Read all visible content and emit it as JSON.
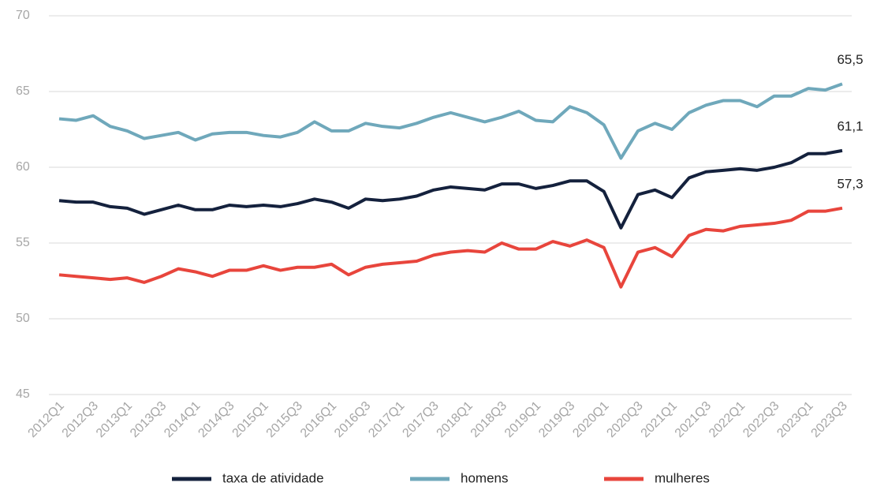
{
  "chart_data": {
    "type": "line",
    "categories": [
      "2012Q1",
      null,
      "2012Q3",
      null,
      "2013Q1",
      null,
      "2013Q3",
      null,
      "2014Q1",
      null,
      "2014Q3",
      null,
      "2015Q1",
      null,
      "2015Q3",
      null,
      "2016Q1",
      null,
      "2016Q3",
      null,
      "2017Q1",
      null,
      "2017Q3",
      null,
      "2018Q1",
      null,
      "2018Q3",
      null,
      "2019Q1",
      null,
      "2019Q3",
      null,
      "2020Q1",
      null,
      "2020Q3",
      null,
      "2021Q1",
      null,
      "2021Q3",
      null,
      "2022Q1",
      null,
      "2022Q3",
      null,
      "2023Q1",
      null,
      "2023Q3"
    ],
    "series": [
      {
        "name": "taxa de atividade",
        "color": "#14213d",
        "values": [
          57.8,
          57.7,
          57.7,
          57.4,
          57.3,
          56.9,
          57.2,
          57.5,
          57.2,
          57.2,
          57.5,
          57.4,
          57.5,
          57.4,
          57.6,
          57.9,
          57.7,
          57.3,
          57.9,
          57.8,
          57.9,
          58.1,
          58.5,
          58.7,
          58.6,
          58.5,
          58.9,
          58.9,
          58.6,
          58.8,
          59.1,
          59.1,
          58.4,
          56.0,
          58.2,
          58.5,
          58.0,
          59.3,
          59.7,
          59.8,
          59.9,
          59.8,
          60.0,
          60.3,
          60.9,
          60.9,
          61.1
        ],
        "value_labels": [
          null,
          null,
          null,
          null,
          null,
          null,
          null,
          null,
          null,
          null,
          null,
          null,
          null,
          null,
          null,
          null,
          null,
          null,
          null,
          null,
          null,
          null,
          null,
          null,
          null,
          null,
          null,
          null,
          null,
          null,
          null,
          null,
          null,
          null,
          null,
          null,
          null,
          null,
          null,
          null,
          null,
          null,
          null,
          null,
          null,
          null,
          "61,1"
        ]
      },
      {
        "name": "homens",
        "color": "#6fa8bb",
        "values": [
          63.2,
          63.1,
          63.4,
          62.7,
          62.4,
          61.9,
          62.1,
          62.3,
          61.8,
          62.2,
          62.3,
          62.3,
          62.1,
          62.0,
          62.3,
          63.0,
          62.4,
          62.4,
          62.9,
          62.7,
          62.6,
          62.9,
          63.3,
          63.6,
          63.3,
          63.0,
          63.3,
          63.7,
          63.1,
          63.0,
          64.0,
          63.6,
          62.8,
          60.6,
          62.4,
          62.9,
          62.5,
          63.6,
          64.1,
          64.4,
          64.4,
          64.0,
          64.7,
          64.7,
          65.2,
          65.1,
          65.5
        ],
        "value_labels": [
          null,
          null,
          null,
          null,
          null,
          null,
          null,
          null,
          null,
          null,
          null,
          null,
          null,
          null,
          null,
          null,
          null,
          null,
          null,
          null,
          null,
          null,
          null,
          null,
          null,
          null,
          null,
          null,
          null,
          null,
          null,
          null,
          null,
          null,
          null,
          null,
          null,
          null,
          null,
          null,
          null,
          null,
          null,
          null,
          null,
          null,
          "65,5"
        ]
      },
      {
        "name": "mulheres",
        "color": "#e8453c",
        "values": [
          52.9,
          52.8,
          52.7,
          52.6,
          52.7,
          52.4,
          52.8,
          53.3,
          53.1,
          52.8,
          53.2,
          53.2,
          53.5,
          53.2,
          53.4,
          53.4,
          53.6,
          52.9,
          53.4,
          53.6,
          53.7,
          53.8,
          54.2,
          54.4,
          54.5,
          54.4,
          55.0,
          54.6,
          54.6,
          55.1,
          54.8,
          55.2,
          54.7,
          52.1,
          54.4,
          54.7,
          54.1,
          55.5,
          55.9,
          55.8,
          56.1,
          56.2,
          56.3,
          56.5,
          57.1,
          57.1,
          57.3
        ],
        "value_labels": [
          null,
          null,
          null,
          null,
          null,
          null,
          null,
          null,
          null,
          null,
          null,
          null,
          null,
          null,
          null,
          null,
          null,
          null,
          null,
          null,
          null,
          null,
          null,
          null,
          null,
          null,
          null,
          null,
          null,
          null,
          null,
          null,
          null,
          null,
          null,
          null,
          null,
          null,
          null,
          null,
          null,
          null,
          null,
          null,
          null,
          null,
          "57,3"
        ]
      }
    ],
    "ylim": [
      45,
      70
    ],
    "yticks": [
      45,
      50,
      55,
      60,
      65,
      70
    ],
    "grid": true,
    "legend": "bottom"
  }
}
